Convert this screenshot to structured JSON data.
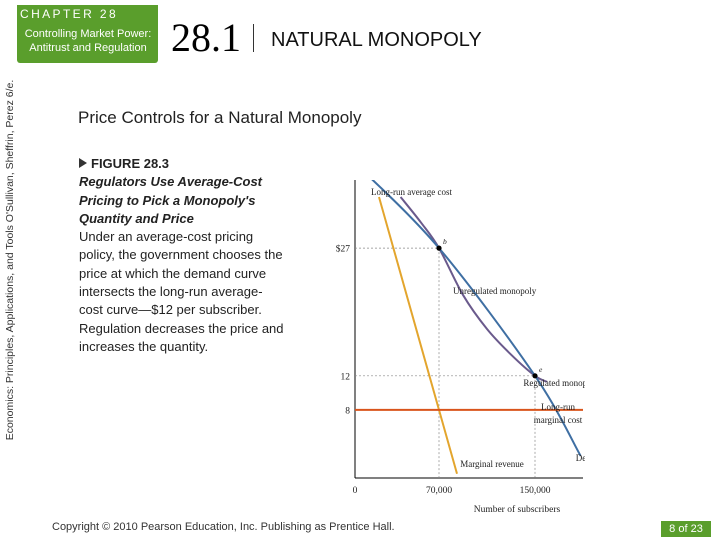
{
  "header": {
    "chapter_label": "CHAPTER 28",
    "chapter_subtitle": "Controlling Market Power: Antitrust and Regulation",
    "section_number": "28.1",
    "section_title": "NATURAL MONOPOLY"
  },
  "sidebar": {
    "credit": "Economics: Principles, Applications, and Tools  O'Sullivan, Sheffrin, Perez   6/e."
  },
  "slide": {
    "title": "Price Controls for a Natural Monopoly"
  },
  "figure": {
    "label": "FIGURE 28.3",
    "title": "Regulators Use Average-Cost Pricing to Pick a Monopoly's Quantity and Price",
    "description": "Under an average-cost pricing policy, the government chooses the price at which the demand curve intersects the long-run average-cost curve—$12 per subscriber.",
    "note": "Regulation decreases the price and increases the quantity."
  },
  "chart_data": {
    "type": "line",
    "xlabel": "Number of subscribers",
    "ylabel": "",
    "xlim": [
      0,
      190000
    ],
    "ylim": [
      0,
      35
    ],
    "x_ticks": [
      {
        "value": 0,
        "label": "0"
      },
      {
        "value": 70000,
        "label": "70,000"
      },
      {
        "value": 150000,
        "label": "150,000"
      }
    ],
    "y_ticks": [
      {
        "value": 8,
        "label": "8"
      },
      {
        "value": 12,
        "label": "12"
      },
      {
        "value": 27,
        "label": "$27"
      }
    ],
    "series": [
      {
        "name": "Long-run average cost",
        "color": "#6a5a8c",
        "x": [
          38000,
          55000,
          70000,
          90000,
          110000,
          130000,
          150000,
          160000
        ],
        "y": [
          33,
          30,
          27,
          21.5,
          17.5,
          14.5,
          12,
          11.3
        ]
      },
      {
        "name": "Demand",
        "color": "#3f6fa3",
        "x": [
          0,
          70000,
          150000,
          188000
        ],
        "y": [
          37,
          27,
          12,
          2.6
        ]
      },
      {
        "name": "Marginal revenue",
        "color": "#e3a52d",
        "x": [
          20000,
          70000,
          85000
        ],
        "y": [
          33,
          8,
          0.5
        ]
      },
      {
        "name": "Long-run marginal cost",
        "color": "#d9541c",
        "x": [
          0,
          190000
        ],
        "y": [
          8,
          8
        ]
      }
    ],
    "points": [
      {
        "label": "b",
        "name": "Unregulated monopoly",
        "x": 70000,
        "y": 27
      },
      {
        "label": "e",
        "name": "Regulated monopoly",
        "x": 150000,
        "y": 12
      }
    ],
    "curve_labels": [
      "Long-run average cost",
      "Unregulated monopoly",
      "Regulated monopoly",
      "Long-run marginal cost",
      "Marginal revenue",
      "Demand"
    ]
  },
  "footer": {
    "copyright": "Copyright © 2010  Pearson Education, Inc. Publishing as Prentice Hall.",
    "page": "8 of 23"
  },
  "colors": {
    "accent_green": "#5a9e2c"
  }
}
